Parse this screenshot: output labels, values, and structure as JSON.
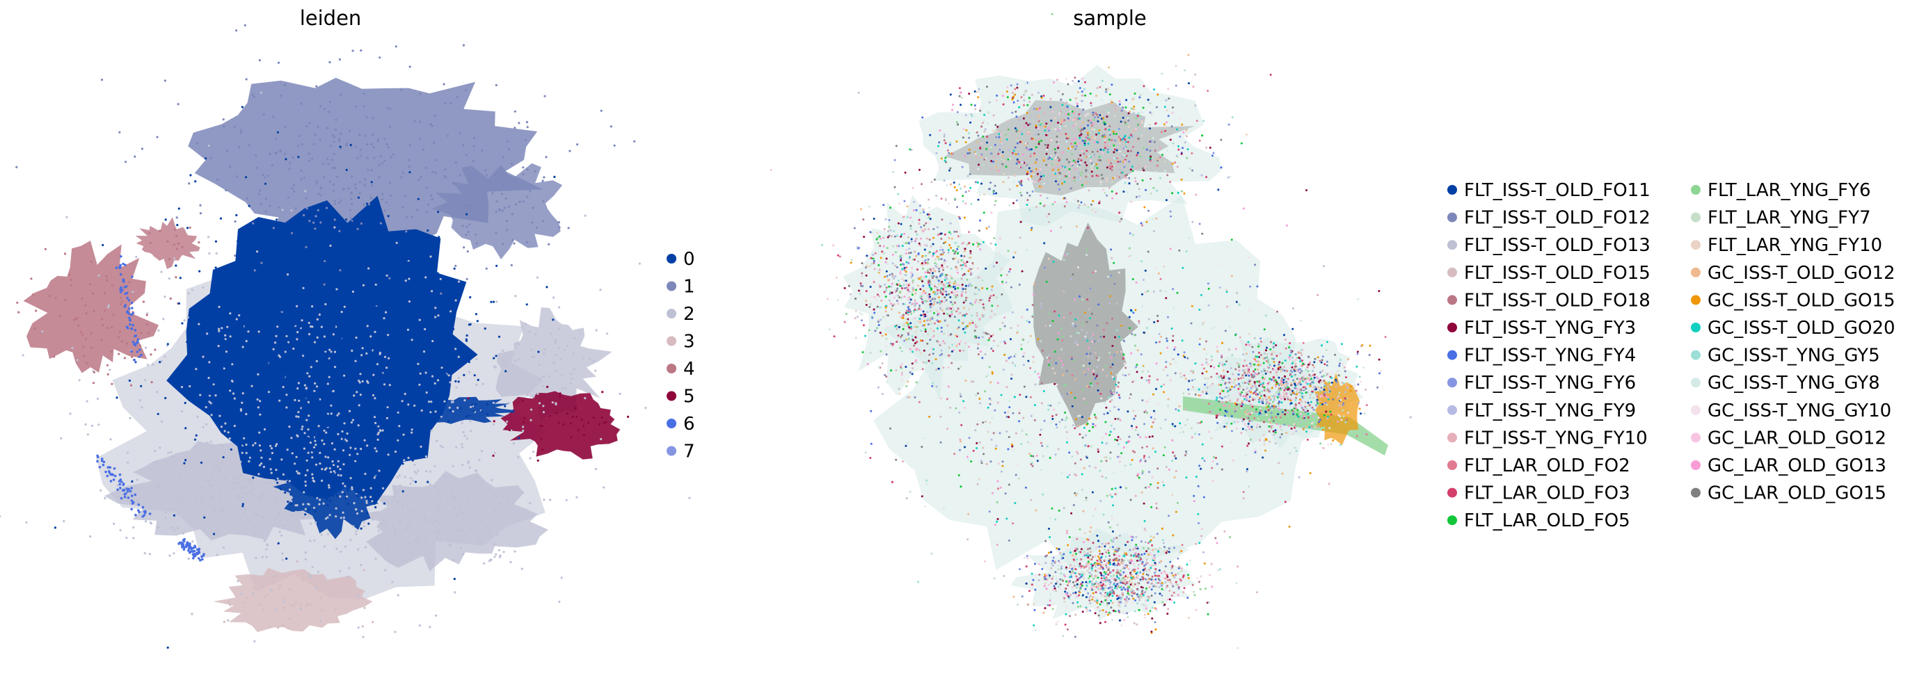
{
  "chart_data": [
    {
      "type": "scatter",
      "title": "leiden",
      "xlabel": "",
      "ylabel": "",
      "axes": "hidden",
      "grid": false,
      "legend_position": "right",
      "categories": [
        "0",
        "1",
        "2",
        "3",
        "4",
        "5",
        "6",
        "7"
      ],
      "colors": {
        "0": "#023fa5",
        "1": "#7d87b9",
        "2": "#bec1d4",
        "3": "#d6bcc0",
        "4": "#bb7784",
        "5": "#8e063b",
        "6": "#4a6fe3",
        "7": "#8595e1"
      }
    },
    {
      "type": "scatter",
      "title": "sample",
      "xlabel": "",
      "ylabel": "",
      "axes": "hidden",
      "grid": false,
      "legend_position": "right",
      "legend_columns": 2,
      "categories": [
        "FLT_ISS-T_OLD_FO11",
        "FLT_ISS-T_OLD_FO12",
        "FLT_ISS-T_OLD_FO13",
        "FLT_ISS-T_OLD_FO15",
        "FLT_ISS-T_OLD_FO18",
        "FLT_ISS-T_YNG_FY3",
        "FLT_ISS-T_YNG_FY4",
        "FLT_ISS-T_YNG_FY6",
        "FLT_ISS-T_YNG_FY9",
        "FLT_ISS-T_YNG_FY10",
        "FLT_LAR_OLD_FO2",
        "FLT_LAR_OLD_FO3",
        "FLT_LAR_OLD_FO5",
        "FLT_LAR_YNG_FY6",
        "FLT_LAR_YNG_FY7",
        "FLT_LAR_YNG_FY10",
        "GC_ISS-T_OLD_GO12",
        "GC_ISS-T_OLD_GO15",
        "GC_ISS-T_OLD_GO20",
        "GC_ISS-T_YNG_GY5",
        "GC_ISS-T_YNG_GY8",
        "GC_ISS-T_YNG_GY10",
        "GC_LAR_OLD_GO12",
        "GC_LAR_OLD_GO13",
        "GC_LAR_OLD_GO15"
      ],
      "colors": [
        "#023fa5",
        "#7d87b9",
        "#bec1d4",
        "#d6bcc0",
        "#bb7784",
        "#8e063b",
        "#4a6fe3",
        "#8595e1",
        "#b5bbe3",
        "#e6afb9",
        "#e07b91",
        "#d33f6a",
        "#11c638",
        "#8dd593",
        "#c6dec7",
        "#ead3c6",
        "#f0b98d",
        "#ef9708",
        "#0fcfc0",
        "#9cded6",
        "#d5eae7",
        "#f3e1eb",
        "#f6c4e1",
        "#f79cd4",
        "#7f7f7f"
      ]
    }
  ]
}
